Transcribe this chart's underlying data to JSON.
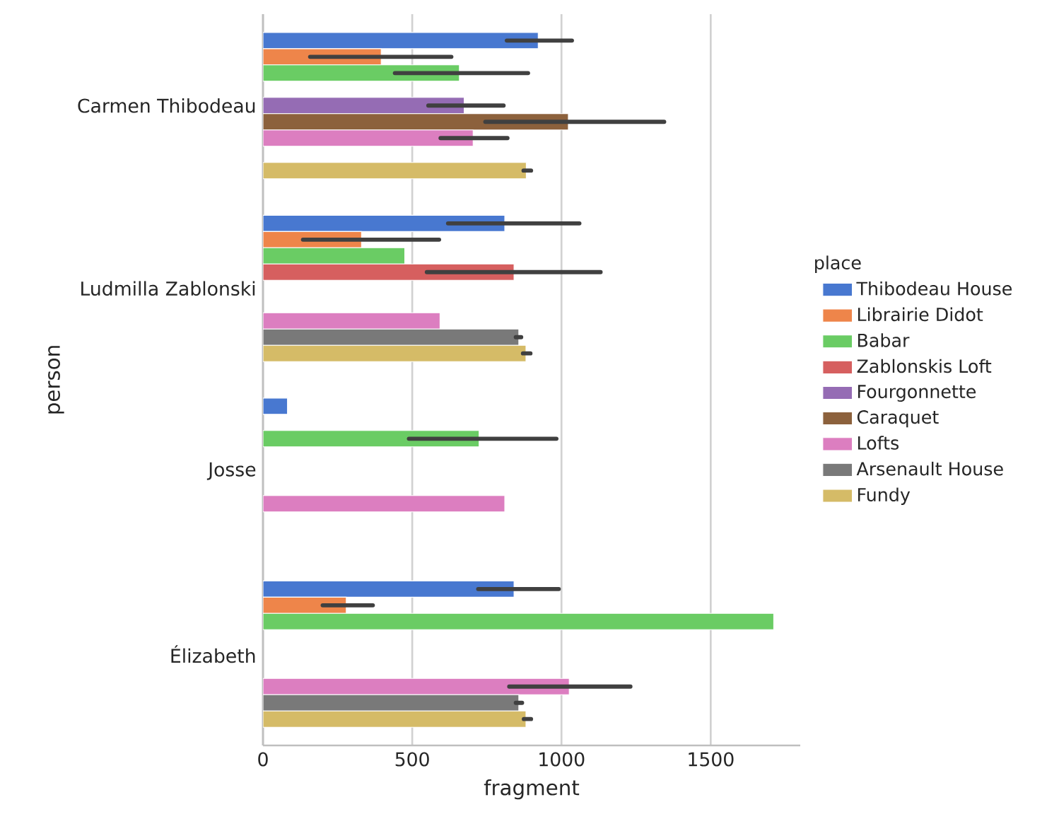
{
  "chart_data": {
    "type": "bar",
    "orientation": "horizontal",
    "xlabel": "fragment",
    "ylabel": "person",
    "legend_title": "place",
    "categories": [
      "Carmen Thibodeau",
      "Ludmilla Zablonski",
      "Josse",
      "Élizabeth"
    ],
    "xlim": [
      0,
      1800
    ],
    "xticks": [
      0,
      500,
      1000,
      1500
    ],
    "grid": "x",
    "legend": "right",
    "series": [
      {
        "name": "Thibodeau House",
        "color": "#4878d0",
        "values": [
          922,
          810,
          82,
          841
        ],
        "errors": [
          [
            817,
            1035
          ],
          [
            620,
            1060
          ],
          null,
          [
            721,
            991
          ]
        ]
      },
      {
        "name": "Librairie Didot",
        "color": "#ee854a",
        "values": [
          396,
          330,
          null,
          279
        ],
        "errors": [
          [
            158,
            631
          ],
          [
            134,
            590
          ],
          null,
          [
            200,
            368
          ]
        ]
      },
      {
        "name": "Babar",
        "color": "#6acc64",
        "values": [
          658,
          475,
          724,
          1711
        ],
        "errors": [
          [
            442,
            888
          ],
          null,
          [
            489,
            983
          ],
          null
        ]
      },
      {
        "name": "Zablonskis Loft",
        "color": "#d65f5f",
        "values": [
          null,
          841,
          null,
          null
        ],
        "errors": [
          null,
          [
            549,
            1131
          ],
          null,
          null
        ]
      },
      {
        "name": "Fourgonnette",
        "color": "#956cb4",
        "values": [
          674,
          null,
          null,
          null
        ],
        "errors": [
          [
            554,
            806
          ],
          null,
          null,
          null
        ]
      },
      {
        "name": "Caraquet",
        "color": "#8c613c",
        "values": [
          1023,
          null,
          null,
          null
        ],
        "errors": [
          [
            745,
            1344
          ],
          null,
          null,
          null
        ]
      },
      {
        "name": "Lofts",
        "color": "#dc7ec0",
        "values": [
          704,
          593,
          810,
          1026
        ],
        "errors": [
          [
            595,
            819
          ],
          null,
          null,
          [
            825,
            1231
          ]
        ]
      },
      {
        "name": "Arsenault House",
        "color": "#797979",
        "values": [
          null,
          857,
          null,
          857
        ],
        "errors": [
          null,
          [
            847,
            865
          ],
          null,
          [
            847,
            868
          ]
        ]
      },
      {
        "name": "Fundy",
        "color": "#d5bb67",
        "values": [
          882,
          881,
          null,
          881
        ],
        "errors": [
          [
            873,
            898
          ],
          [
            871,
            896
          ],
          null,
          [
            874,
            898
          ]
        ]
      }
    ]
  }
}
